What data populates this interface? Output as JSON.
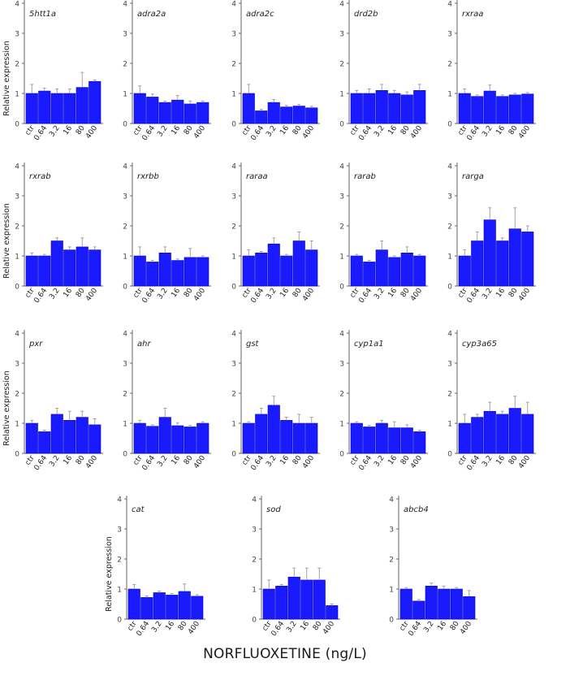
{
  "chart_data": [
    {
      "type": "bar",
      "title": "5htt1a",
      "ylabel": "Relative expression",
      "categories": [
        "ctr",
        "0.64",
        "3.2",
        "16",
        "80",
        "400"
      ],
      "values": [
        1.0,
        1.08,
        1.0,
        1.0,
        1.2,
        1.4
      ],
      "errors": [
        0.3,
        0.1,
        0.15,
        0.15,
        0.5,
        0.05
      ],
      "ylim": [
        0,
        4
      ],
      "yticks": [
        0,
        1,
        2,
        3,
        4
      ]
    },
    {
      "type": "bar",
      "title": "adra2a",
      "ylabel": "",
      "categories": [
        "ctr",
        "0.64",
        "3.2",
        "16",
        "80",
        "400"
      ],
      "values": [
        1.0,
        0.88,
        0.7,
        0.78,
        0.65,
        0.7
      ],
      "errors": [
        0.25,
        0.1,
        0.05,
        0.15,
        0.1,
        0.05
      ],
      "ylim": [
        0,
        4
      ],
      "yticks": [
        0,
        1,
        2,
        3,
        4
      ]
    },
    {
      "type": "bar",
      "title": "adra2c",
      "ylabel": "",
      "categories": [
        "ctr",
        "0.64",
        "3.2",
        "16",
        "80",
        "400"
      ],
      "values": [
        1.0,
        0.42,
        0.7,
        0.55,
        0.58,
        0.52
      ],
      "errors": [
        0.3,
        0.05,
        0.1,
        0.05,
        0.05,
        0.05
      ],
      "ylim": [
        0,
        4
      ],
      "yticks": [
        0,
        1,
        2,
        3,
        4
      ]
    },
    {
      "type": "bar",
      "title": "drd2b",
      "ylabel": "",
      "categories": [
        "ctr",
        "0.64",
        "3.2",
        "16",
        "80",
        "400"
      ],
      "values": [
        1.0,
        1.0,
        1.1,
        1.0,
        0.95,
        1.1
      ],
      "errors": [
        0.1,
        0.15,
        0.2,
        0.1,
        0.1,
        0.2
      ],
      "ylim": [
        0,
        4
      ],
      "yticks": [
        0,
        1,
        2,
        3,
        4
      ]
    },
    {
      "type": "bar",
      "title": "rxraa",
      "ylabel": "",
      "categories": [
        "ctr",
        "0.64",
        "3.2",
        "16",
        "80",
        "400"
      ],
      "values": [
        1.0,
        0.9,
        1.08,
        0.9,
        0.95,
        0.98
      ],
      "errors": [
        0.15,
        0.05,
        0.2,
        0.05,
        0.05,
        0.05
      ],
      "ylim": [
        0,
        4
      ],
      "yticks": [
        0,
        1,
        2,
        3,
        4
      ]
    },
    {
      "type": "bar",
      "title": "rxrab",
      "ylabel": "Relative expression",
      "categories": [
        "ctr",
        "0.64",
        "3.2",
        "16",
        "80",
        "400"
      ],
      "values": [
        1.0,
        1.0,
        1.5,
        1.2,
        1.3,
        1.2
      ],
      "errors": [
        0.1,
        0.05,
        0.1,
        0.1,
        0.3,
        0.1
      ],
      "ylim": [
        0,
        4
      ],
      "yticks": [
        0,
        1,
        2,
        3,
        4
      ]
    },
    {
      "type": "bar",
      "title": "rxrbb",
      "ylabel": "",
      "categories": [
        "ctr",
        "0.64",
        "3.2",
        "16",
        "80",
        "400"
      ],
      "values": [
        1.0,
        0.8,
        1.1,
        0.85,
        0.95,
        0.95
      ],
      "errors": [
        0.3,
        0.05,
        0.2,
        0.05,
        0.3,
        0.05
      ],
      "ylim": [
        0,
        4
      ],
      "yticks": [
        0,
        1,
        2,
        3,
        4
      ]
    },
    {
      "type": "bar",
      "title": "raraa",
      "ylabel": "",
      "categories": [
        "ctr",
        "0.64",
        "3.2",
        "16",
        "80",
        "400"
      ],
      "values": [
        1.0,
        1.1,
        1.4,
        1.0,
        1.5,
        1.2
      ],
      "errors": [
        0.2,
        0.05,
        0.2,
        0.05,
        0.3,
        0.3
      ],
      "ylim": [
        0,
        4
      ],
      "yticks": [
        0,
        1,
        2,
        3,
        4
      ]
    },
    {
      "type": "bar",
      "title": "rarab",
      "ylabel": "",
      "categories": [
        "ctr",
        "0.64",
        "3.2",
        "16",
        "80",
        "400"
      ],
      "values": [
        1.0,
        0.8,
        1.2,
        0.95,
        1.1,
        1.0
      ],
      "errors": [
        0.05,
        0.05,
        0.3,
        0.05,
        0.2,
        0.05
      ],
      "ylim": [
        0,
        4
      ],
      "yticks": [
        0,
        1,
        2,
        3,
        4
      ]
    },
    {
      "type": "bar",
      "title": "rarga",
      "ylabel": "",
      "categories": [
        "ctr",
        "0.64",
        "3.2",
        "16",
        "80",
        "400"
      ],
      "values": [
        1.0,
        1.5,
        2.2,
        1.5,
        1.9,
        1.8
      ],
      "errors": [
        0.2,
        0.3,
        0.4,
        0.1,
        0.7,
        0.2
      ],
      "ylim": [
        0,
        4
      ],
      "yticks": [
        0,
        1,
        2,
        3,
        4
      ]
    },
    {
      "type": "bar",
      "title": "pxr",
      "ylabel": "Relative expression",
      "categories": [
        "ctr",
        "0.64",
        "3.2",
        "16",
        "80",
        "400"
      ],
      "values": [
        1.0,
        0.72,
        1.3,
        1.1,
        1.2,
        0.95
      ],
      "errors": [
        0.1,
        0.05,
        0.2,
        0.3,
        0.2,
        0.2
      ],
      "ylim": [
        0,
        4
      ],
      "yticks": [
        0,
        1,
        2,
        3,
        4
      ]
    },
    {
      "type": "bar",
      "title": "ahr",
      "ylabel": "",
      "categories": [
        "ctr",
        "0.64",
        "3.2",
        "16",
        "80",
        "400"
      ],
      "values": [
        1.0,
        0.9,
        1.2,
        0.92,
        0.88,
        1.0
      ],
      "errors": [
        0.1,
        0.05,
        0.3,
        0.1,
        0.05,
        0.05
      ],
      "ylim": [
        0,
        4
      ],
      "yticks": [
        0,
        1,
        2,
        3,
        4
      ]
    },
    {
      "type": "bar",
      "title": "gst",
      "ylabel": "",
      "categories": [
        "ctr",
        "0.64",
        "3.2",
        "16",
        "80",
        "400"
      ],
      "values": [
        1.0,
        1.3,
        1.6,
        1.1,
        1.0,
        1.0
      ],
      "errors": [
        0.05,
        0.2,
        0.3,
        0.1,
        0.3,
        0.2
      ],
      "ylim": [
        0,
        4
      ],
      "yticks": [
        0,
        1,
        2,
        3,
        4
      ]
    },
    {
      "type": "bar",
      "title": "cyp1a1",
      "ylabel": "",
      "categories": [
        "ctr",
        "0.64",
        "3.2",
        "16",
        "80",
        "400"
      ],
      "values": [
        1.0,
        0.88,
        1.0,
        0.85,
        0.85,
        0.72
      ],
      "errors": [
        0.05,
        0.05,
        0.1,
        0.2,
        0.1,
        0.05
      ],
      "ylim": [
        0,
        4
      ],
      "yticks": [
        0,
        1,
        2,
        3,
        4
      ]
    },
    {
      "type": "bar",
      "title": "cyp3a65",
      "ylabel": "",
      "categories": [
        "ctr",
        "0.64",
        "3.2",
        "16",
        "80",
        "400"
      ],
      "values": [
        1.0,
        1.2,
        1.4,
        1.3,
        1.5,
        1.3
      ],
      "errors": [
        0.3,
        0.1,
        0.3,
        0.1,
        0.4,
        0.4
      ],
      "ylim": [
        0,
        4
      ],
      "yticks": [
        0,
        1,
        2,
        3,
        4
      ]
    },
    {
      "type": "bar",
      "title": "cat",
      "ylabel": "Relative expression",
      "categories": [
        "ctr",
        "0.64",
        "3.2",
        "16",
        "80",
        "400"
      ],
      "values": [
        1.0,
        0.72,
        0.88,
        0.8,
        0.92,
        0.76
      ],
      "errors": [
        0.15,
        0.05,
        0.05,
        0.05,
        0.25,
        0.05
      ],
      "ylim": [
        0,
        4
      ],
      "yticks": [
        0,
        1,
        2,
        3,
        4
      ]
    },
    {
      "type": "bar",
      "title": "sod",
      "ylabel": "",
      "categories": [
        "ctr",
        "0.64",
        "3.2",
        "16",
        "80",
        "400"
      ],
      "values": [
        1.0,
        1.1,
        1.4,
        1.3,
        1.3,
        0.45
      ],
      "errors": [
        0.3,
        0.05,
        0.3,
        0.4,
        0.4,
        0.05
      ],
      "ylim": [
        0,
        4
      ],
      "yticks": [
        0,
        1,
        2,
        3,
        4
      ]
    },
    {
      "type": "bar",
      "title": "abcb4",
      "ylabel": "",
      "categories": [
        "ctr",
        "0.64",
        "3.2",
        "16",
        "80",
        "400"
      ],
      "values": [
        1.0,
        0.6,
        1.1,
        1.0,
        1.0,
        0.75
      ],
      "errors": [
        0.05,
        0.05,
        0.1,
        0.1,
        0.05,
        0.2
      ],
      "ylim": [
        0,
        4
      ],
      "yticks": [
        0,
        1,
        2,
        3,
        4
      ]
    }
  ],
  "xlabel": "NORFLUOXETINE (ng/L)",
  "colors": {
    "bar": "#1a1aff",
    "bar_edge": "#0000cc",
    "axis": "#666666",
    "text": "#222222"
  }
}
